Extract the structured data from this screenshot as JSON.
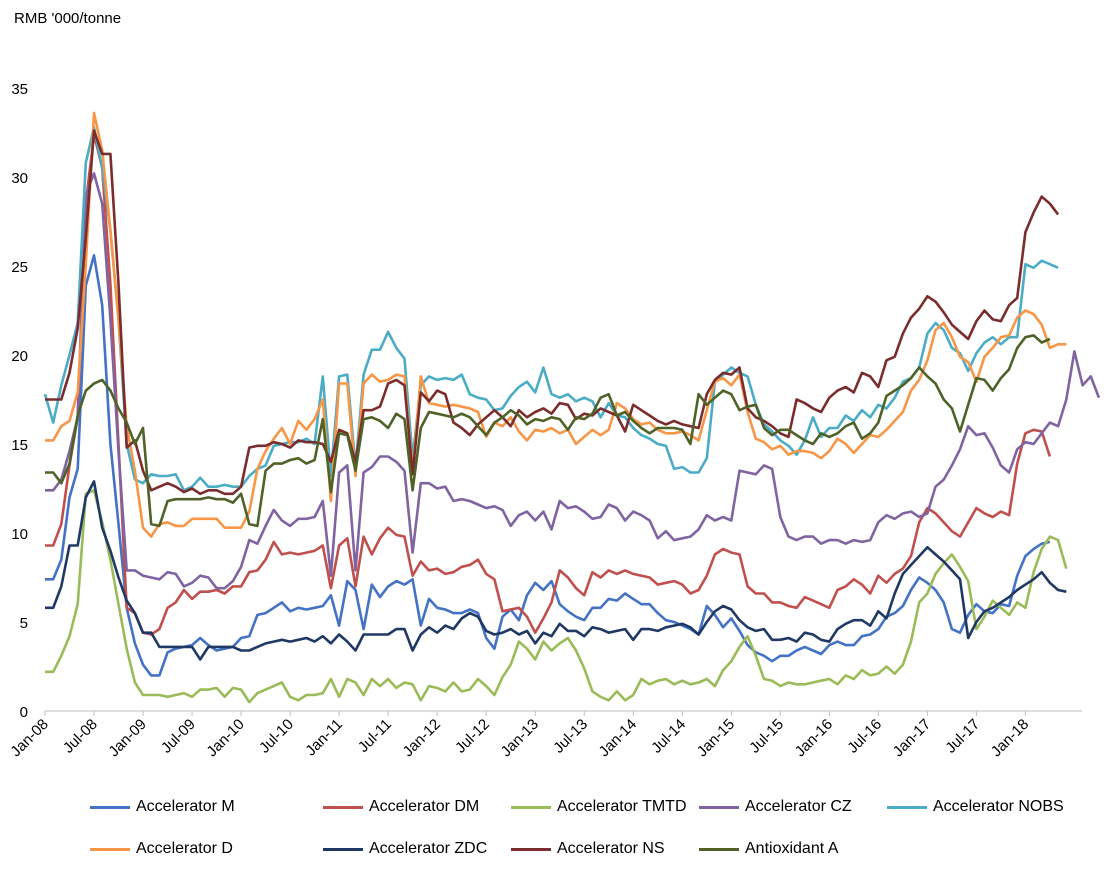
{
  "chart_data": {
    "type": "line",
    "title": "",
    "ylabel": "RMB '000/tonne",
    "xlabel": "",
    "ylim": [
      0,
      35
    ],
    "yticks": [
      0,
      5,
      10,
      15,
      20,
      25,
      30,
      35
    ],
    "xtick_labels": [
      "Jan-08",
      "Jul-08",
      "Jan-09",
      "Jul-09",
      "Jan-10",
      "Jul-10",
      "Jan-11",
      "Jul-11",
      "Jan-12",
      "Jul-12",
      "Jan-13",
      "Jul-13",
      "Jan-14",
      "Jul-14",
      "Jan-15",
      "Jul-15",
      "Jan-16",
      "Jul-16",
      "Jan-17",
      "Jul-17",
      "Jan-18"
    ],
    "months_start": "Jan-08",
    "legend_position": "bottom",
    "grid": false,
    "series": [
      {
        "name": "Accelerator M",
        "color": "#4472C4",
        "values": [
          7.4,
          7.4,
          8.5,
          12,
          13.6,
          23.9,
          25.6,
          22.8,
          15,
          10.5,
          5.8,
          3.8,
          2.6,
          2,
          2,
          3.3,
          3.5,
          3.6,
          3.7,
          4.1,
          3.7,
          3.4,
          3.5,
          3.6,
          4.1,
          4.2,
          5.4,
          5.5,
          5.8,
          6.1,
          5.6,
          5.8,
          5.7,
          5.8,
          5.9,
          6.5,
          4.8,
          7.3,
          6.8,
          4.6,
          7.1,
          6.4,
          7,
          7.3,
          7.1,
          7.4,
          4.8,
          6.3,
          5.8,
          5.7,
          5.5,
          5.5,
          5.7,
          5.5,
          4.1,
          3.5,
          5.3,
          5.7,
          5.1,
          6.5,
          7.2,
          6.8,
          7.3,
          6,
          5.6,
          5.3,
          5.1,
          5.8,
          5.8,
          6.3,
          6.2,
          6.6,
          6.3,
          6,
          6,
          5.5,
          5.1,
          5,
          4.8,
          4.6,
          4.3,
          5.9,
          5.4,
          4.7,
          5.2,
          4.5,
          3.7,
          3.3,
          3.1,
          2.8,
          3.1,
          3.1,
          3.4,
          3.6,
          3.4,
          3.2,
          3.7,
          3.9,
          3.7,
          3.7,
          4.2,
          4.3,
          4.6,
          5.3,
          5.5,
          5.9,
          6.8,
          7.5,
          7.2,
          6.8,
          6.1,
          4.6,
          4.4,
          5.4,
          6,
          5.6,
          5.5,
          6,
          5.9,
          7.6,
          8.7,
          9.1,
          9.4,
          9.5
        ]
      },
      {
        "name": "Accelerator DM",
        "color": "#C0504D",
        "values": [
          9.3,
          9.3,
          10.5,
          13.8,
          16.5,
          28.5,
          32.4,
          30.5,
          24,
          15,
          5.8,
          5.5,
          4.4,
          4.3,
          4.6,
          5.8,
          6.1,
          6.8,
          6.3,
          6.7,
          6.7,
          6.8,
          6.6,
          7,
          7,
          7.8,
          7.9,
          8.5,
          9.5,
          8.8,
          8.9,
          8.8,
          8.9,
          9,
          9.3,
          6.9,
          9.3,
          9.7,
          7,
          9.8,
          8.8,
          9.7,
          10.3,
          9.9,
          9.8,
          7.6,
          8.4,
          7.9,
          8,
          7.7,
          7.8,
          8.1,
          8.2,
          8.5,
          7.7,
          7.4,
          5.6,
          5.7,
          5.8,
          5.3,
          4.4,
          5.2,
          6.1,
          7.9,
          7.5,
          6.9,
          6.5,
          7.8,
          7.5,
          7.9,
          7.7,
          7.9,
          7.7,
          7.6,
          7.5,
          7.1,
          7.2,
          7.3,
          7.1,
          6.6,
          6.8,
          7.6,
          8.8,
          9.1,
          8.9,
          8.8,
          7,
          6.6,
          6.6,
          6.1,
          6.1,
          5.9,
          5.8,
          6.4,
          6.2,
          6,
          5.8,
          6.8,
          7,
          7.4,
          7.1,
          6.6,
          7.6,
          7.2,
          7.7,
          8,
          8.7,
          10.6,
          11.4,
          11.1,
          10.6,
          10.1,
          9.8,
          10.6,
          11.4,
          11.1,
          10.9,
          11.2,
          11,
          13.9,
          15.6,
          15.8,
          15.7,
          14.3
        ]
      },
      {
        "name": "Accelerator TMTD",
        "color": "#9BBB59",
        "values": [
          2.2,
          2.2,
          3.1,
          4.2,
          6,
          12.2,
          12.4,
          10.6,
          8.5,
          6,
          3.5,
          1.6,
          0.9,
          0.9,
          0.9,
          0.8,
          0.9,
          1,
          0.8,
          1.2,
          1.2,
          1.3,
          0.8,
          1.3,
          1.2,
          0.5,
          1,
          1.2,
          1.4,
          1.6,
          0.8,
          0.6,
          0.9,
          0.9,
          1,
          1.8,
          0.8,
          1.8,
          1.6,
          0.9,
          1.8,
          1.4,
          1.8,
          1.3,
          1.6,
          1.5,
          0.6,
          1.4,
          1.3,
          1.1,
          1.6,
          1.1,
          1.2,
          1.8,
          1.4,
          0.9,
          1.9,
          2.6,
          3.9,
          3.5,
          2.9,
          3.9,
          3.4,
          3.8,
          4.1,
          3.4,
          2.4,
          1.1,
          0.8,
          0.6,
          1.1,
          0.6,
          0.9,
          1.8,
          1.5,
          1.7,
          1.8,
          1.5,
          1.7,
          1.5,
          1.6,
          1.8,
          1.4,
          2.3,
          2.8,
          3.6,
          4.2,
          3.1,
          1.8,
          1.7,
          1.4,
          1.6,
          1.5,
          1.5,
          1.6,
          1.7,
          1.8,
          1.5,
          2,
          1.8,
          2.3,
          2,
          2.1,
          2.5,
          2.1,
          2.6,
          3.9,
          6.1,
          6.6,
          7.7,
          8.3,
          8.8,
          8.1,
          7.3,
          4.6,
          5.3,
          6.2,
          5.8,
          5.4,
          6.1,
          5.8,
          7.8,
          9.1,
          9.8,
          9.6,
          8
        ]
      },
      {
        "name": "Accelerator CZ",
        "color": "#8064A2",
        "values": [
          12.4,
          12.4,
          13,
          14.6,
          16.5,
          29,
          30.2,
          28.5,
          22,
          14.6,
          7.9,
          7.9,
          7.6,
          7.5,
          7.4,
          7.8,
          7.7,
          7,
          7.2,
          7.6,
          7.5,
          6.9,
          6.9,
          7.3,
          8.1,
          9.6,
          9.4,
          10.4,
          11.3,
          10.7,
          10.4,
          10.8,
          10.8,
          10.9,
          11.8,
          7.6,
          13.4,
          13.8,
          7.9,
          13.4,
          13.7,
          14.3,
          14.3,
          14,
          13.5,
          8.9,
          12.8,
          12.8,
          12.5,
          12.6,
          11.8,
          11.9,
          11.8,
          11.6,
          11.4,
          11.5,
          11.3,
          10.4,
          11,
          11.2,
          10.7,
          11.2,
          10.2,
          11.8,
          11.4,
          11.5,
          11.2,
          10.8,
          10.9,
          11.6,
          11.4,
          10.7,
          11.2,
          11,
          10.7,
          9.7,
          10.1,
          9.6,
          9.7,
          9.8,
          10.2,
          11,
          10.7,
          10.9,
          10.7,
          13.5,
          13.4,
          13.3,
          13.8,
          13.6,
          10.9,
          9.8,
          9.6,
          9.8,
          9.8,
          9.4,
          9.6,
          9.6,
          9.4,
          9.6,
          9.5,
          9.6,
          10.6,
          11,
          10.8,
          11.1,
          11.2,
          10.9,
          11.1,
          12.6,
          13,
          13.8,
          14.7,
          16,
          15.5,
          15.6,
          14.8,
          13.8,
          13.4,
          14.7,
          15.1,
          15,
          15.6,
          16.2,
          16,
          17.5,
          20.2,
          18.3,
          18.8,
          17.6
        ]
      },
      {
        "name": "Accelerator NOBS",
        "color": "#4BACC6",
        "values": [
          17.8,
          16.2,
          18.3,
          20,
          21.8,
          30.8,
          32.8,
          30.5,
          27,
          22,
          15,
          13,
          12.8,
          13.3,
          13.2,
          13.2,
          13.3,
          12.4,
          12.6,
          13.1,
          12.6,
          12.6,
          12.7,
          12.6,
          12.6,
          13.2,
          13.6,
          13.8,
          14.9,
          15,
          15.1,
          15.1,
          15.3,
          15,
          18.8,
          13.2,
          18.8,
          18.9,
          13.7,
          18.9,
          20.3,
          20.3,
          21.3,
          20.4,
          19.8,
          14.2,
          18.3,
          18.8,
          18.6,
          18.7,
          18.6,
          18.9,
          17.8,
          17.6,
          17.5,
          16.9,
          17,
          17.7,
          18.2,
          18.5,
          17.9,
          19.3,
          17.8,
          17.6,
          17.8,
          17.4,
          17.6,
          17.4,
          16.5,
          17.3,
          16.6,
          16.5,
          15.9,
          15.5,
          15.3,
          15,
          14.9,
          13.6,
          13.7,
          13.4,
          13.4,
          14.2,
          18.5,
          18.9,
          19.3,
          19,
          18.8,
          17.2,
          16.1,
          15.7,
          15.2,
          14.9,
          14.4,
          15.2,
          16.5,
          15.4,
          15.9,
          15.9,
          16.6,
          16.3,
          16.9,
          16.5,
          17.2,
          17,
          17.6,
          18.5,
          18.7,
          19.3,
          21.2,
          21.8,
          21.4,
          20.4,
          20.1,
          19.1,
          20.1,
          20.7,
          21,
          20.6,
          21,
          21,
          25.1,
          24.9,
          25.3,
          25.1,
          24.9
        ]
      },
      {
        "name": "Accelerator D",
        "color": "#F79646",
        "values": [
          15.2,
          15.2,
          16,
          16.3,
          17.9,
          25.1,
          33.6,
          31.5,
          27,
          22,
          16,
          13.5,
          10.3,
          9.8,
          10.5,
          10.6,
          10.4,
          10.4,
          10.8,
          10.8,
          10.8,
          10.8,
          10.3,
          10.3,
          10.3,
          11.2,
          13.6,
          14.6,
          15.3,
          15.9,
          15,
          16.3,
          15.8,
          16.4,
          17.5,
          11.8,
          18.4,
          18.4,
          13.2,
          18.4,
          18.9,
          18.5,
          18.6,
          18.9,
          18.8,
          13.4,
          18.8,
          17.3,
          17.2,
          17.1,
          17.2,
          17.1,
          17,
          16.8,
          15.4,
          16.2,
          16,
          16.5,
          15.7,
          15.2,
          15.8,
          15.7,
          15.9,
          15.6,
          15.8,
          15,
          15.4,
          15.8,
          15.5,
          15.8,
          17.3,
          17,
          16.4,
          16.1,
          16.2,
          15.8,
          15.6,
          15.6,
          15.7,
          15.5,
          15.2,
          16.9,
          18.5,
          18.7,
          18.3,
          18.9,
          16.8,
          15.3,
          15.1,
          14.7,
          14.9,
          14.4,
          14.6,
          14.6,
          14.5,
          14.2,
          14.6,
          15.3,
          15,
          14.5,
          15,
          15.5,
          15.4,
          15.8,
          16.3,
          16.8,
          18,
          18.6,
          19.7,
          21.4,
          21.8,
          21,
          19.9,
          19.6,
          18.5,
          19.9,
          20.4,
          21,
          21.1,
          22.1,
          22.5,
          22.3,
          21.7,
          20.4,
          20.6,
          20.6
        ]
      },
      {
        "name": "Accelerator ZDC",
        "color": "#1F3864",
        "values": [
          5.8,
          5.8,
          7,
          9.3,
          9.3,
          12,
          12.9,
          10.3,
          9,
          7.5,
          6.2,
          5.5,
          4.4,
          4.4,
          3.6,
          3.6,
          3.6,
          3.6,
          3.6,
          2.9,
          3.6,
          3.6,
          3.6,
          3.6,
          3.4,
          3.4,
          3.6,
          3.8,
          3.9,
          4,
          3.9,
          4,
          4.1,
          3.9,
          4.2,
          3.8,
          4.3,
          3.9,
          3.4,
          4.3,
          4.3,
          4.3,
          4.3,
          4.6,
          4.6,
          3.4,
          4.3,
          4.7,
          4.4,
          4.8,
          4.6,
          5.2,
          5.5,
          5.3,
          4.5,
          4.3,
          4.4,
          4.6,
          4.3,
          4.5,
          3.8,
          4.4,
          4.2,
          4.9,
          4.5,
          4.5,
          4.2,
          4.7,
          4.6,
          4.4,
          4.5,
          4.6,
          4,
          4.6,
          4.6,
          4.5,
          4.7,
          4.8,
          4.9,
          4.7,
          4.3,
          5,
          5.6,
          5.9,
          5.7,
          5.1,
          4.7,
          4.5,
          4.6,
          4,
          4,
          4.1,
          3.9,
          4.4,
          4.3,
          4,
          3.9,
          4.6,
          4.9,
          5.1,
          5.1,
          4.8,
          5.6,
          5.2,
          6.6,
          7.7,
          8.2,
          8.7,
          9.2,
          8.8,
          8.4,
          7.9,
          7.4,
          4.1,
          5,
          5.6,
          5.8,
          6.1,
          6.4,
          6.8,
          7.1,
          7.4,
          7.8,
          7.2,
          6.8,
          6.7
        ]
      },
      {
        "name": "Accelerator NS",
        "color": "#7B2C2C",
        "values": [
          17.5,
          17.5,
          17.5,
          19,
          21.5,
          26.6,
          32.6,
          31.3,
          31.3,
          24,
          14.8,
          15.2,
          13.5,
          12.4,
          12.6,
          12.8,
          12.6,
          12.3,
          12.5,
          12.2,
          12.4,
          12.4,
          12.2,
          12.2,
          12.6,
          14.8,
          14.9,
          14.9,
          15.1,
          15,
          14.8,
          15.2,
          15.1,
          15.1,
          15,
          14,
          15.8,
          15.6,
          14,
          16.9,
          16.9,
          17.1,
          18.4,
          18.6,
          18.3,
          13.3,
          17.9,
          17.4,
          18,
          17.8,
          16.2,
          15.9,
          15.5,
          16.1,
          16.5,
          16.9,
          16.5,
          16,
          16.9,
          16.5,
          16.8,
          17,
          16.7,
          17.3,
          17.2,
          16.4,
          16.7,
          16.6,
          17,
          16.8,
          16.6,
          15.7,
          17.2,
          16.9,
          16.6,
          16.3,
          16.1,
          16.3,
          16.1,
          16,
          15.9,
          17.8,
          18.6,
          19,
          18.9,
          19.3,
          17,
          16.5,
          16.3,
          16,
          15.6,
          15.4,
          17.5,
          17.3,
          17,
          16.8,
          17.6,
          18,
          18.2,
          17.9,
          19,
          18.8,
          18.2,
          19.7,
          19.9,
          21.2,
          22.1,
          22.6,
          23.3,
          23,
          22.4,
          21.7,
          21.3,
          20.9,
          21.9,
          22.5,
          22,
          21.9,
          22.8,
          23.2,
          26.9,
          28,
          28.9,
          28.5,
          27.9
        ]
      },
      {
        "name": "Antioxidant A",
        "color": "#4F6228",
        "values": [
          13.4,
          13.4,
          12.8,
          13.9,
          16.6,
          18,
          18.4,
          18.6,
          18,
          17,
          16.2,
          15,
          15.9,
          10.5,
          10.4,
          11.8,
          11.9,
          11.9,
          11.9,
          11.9,
          12,
          11.9,
          11.9,
          11.7,
          12.2,
          10.5,
          10.4,
          13.5,
          13.9,
          13.9,
          14.1,
          14.2,
          13.9,
          14.1,
          16.4,
          12.3,
          15.6,
          15.5,
          13.5,
          16.4,
          16.5,
          16.3,
          15.9,
          16.7,
          16.4,
          12.4,
          15.9,
          16.8,
          16.7,
          16.6,
          16.5,
          16.7,
          16.5,
          16,
          15.5,
          16.2,
          16.5,
          16.9,
          16.6,
          16.1,
          16.4,
          16.3,
          16.5,
          16.4,
          15.8,
          16.5,
          16.4,
          16.7,
          17.6,
          17.8,
          16.6,
          16.8,
          16.3,
          15.9,
          15.6,
          15.9,
          15.9,
          15.9,
          15.8,
          15,
          17.8,
          17.2,
          17.6,
          18,
          17.8,
          16.9,
          17.1,
          17.2,
          15.9,
          15.5,
          15.8,
          15.8,
          15.5,
          15.2,
          15,
          15.6,
          15.4,
          15.6,
          16,
          16.2,
          15.3,
          15.6,
          16.2,
          17.7,
          18,
          18.3,
          18.7,
          19.3,
          18.8,
          18.4,
          17.5,
          17,
          15.7,
          17.2,
          18.7,
          18.6,
          18,
          18.7,
          19.2,
          20.4,
          21,
          21.1,
          20.7,
          20.9
        ]
      }
    ]
  }
}
